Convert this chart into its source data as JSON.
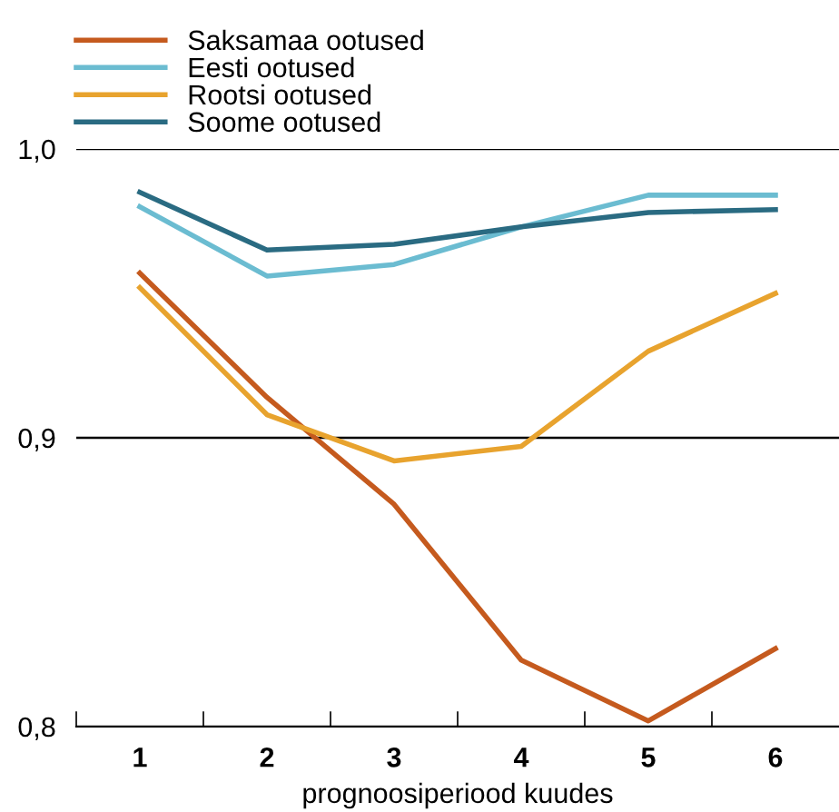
{
  "chart_data": {
    "type": "line",
    "xlabel": "prognoosiperiood kuudes",
    "categories": [
      "1",
      "2",
      "3",
      "4",
      "5",
      "6"
    ],
    "series": [
      {
        "name": "Saksamaa ootused",
        "color": "#c55a1e",
        "values": [
          0.957,
          0.914,
          0.877,
          0.823,
          0.802,
          0.827
        ]
      },
      {
        "name": "Eesti ootused",
        "color": "#6bbcd1",
        "values": [
          0.98,
          0.956,
          0.96,
          0.973,
          0.984,
          0.984
        ]
      },
      {
        "name": "Rootsi ootused",
        "color": "#e8a32e",
        "values": [
          0.952,
          0.908,
          0.892,
          0.897,
          0.93,
          0.95
        ]
      },
      {
        "name": "Soome ootused",
        "color": "#2a6b82",
        "values": [
          0.985,
          0.965,
          0.967,
          0.973,
          0.978,
          0.979
        ]
      }
    ],
    "ylim": [
      0.8,
      1.0
    ],
    "yticks": [
      {
        "value": 0.8,
        "label": "0,8"
      },
      {
        "value": 0.9,
        "label": "0,9"
      },
      {
        "value": 1.0,
        "label": "1,0"
      }
    ],
    "grid": "y",
    "legend": "top left",
    "marker": "none",
    "line_style": "solid"
  }
}
